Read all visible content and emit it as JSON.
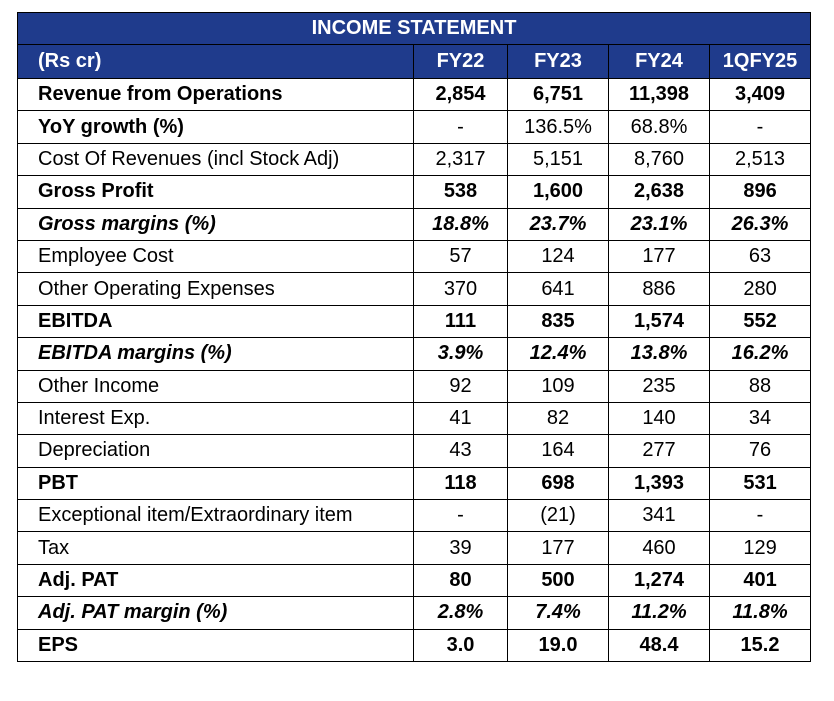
{
  "title": "INCOME STATEMENT",
  "header": {
    "label": "(Rs cr)",
    "cols": [
      "FY22",
      "FY23",
      "FY24",
      "1QFY25"
    ]
  },
  "rows": [
    {
      "label": "Revenue from Operations",
      "values": [
        "2,854",
        "6,751",
        "11,398",
        "3,409"
      ],
      "style": "bold"
    },
    {
      "label": "YoY growth (%)",
      "values": [
        "-",
        "136.5%",
        "68.8%",
        "-"
      ],
      "style": "boldlabel"
    },
    {
      "label": "Cost Of Revenues (incl Stock Adj)",
      "values": [
        "2,317",
        "5,151",
        "8,760",
        "2,513"
      ],
      "style": "normal"
    },
    {
      "label": "Gross Profit",
      "values": [
        "538",
        "1,600",
        "2,638",
        "896"
      ],
      "style": "bold"
    },
    {
      "label": "Gross margins (%)",
      "values": [
        "18.8%",
        "23.7%",
        "23.1%",
        "26.3%"
      ],
      "style": "bi"
    },
    {
      "label": "Employee Cost",
      "values": [
        "57",
        "124",
        "177",
        "63"
      ],
      "style": "normal"
    },
    {
      "label": "Other Operating Expenses",
      "values": [
        "370",
        "641",
        "886",
        "280"
      ],
      "style": "normal"
    },
    {
      "label": "EBITDA",
      "values": [
        "111",
        "835",
        "1,574",
        "552"
      ],
      "style": "bold"
    },
    {
      "label": "EBITDA margins (%)",
      "values": [
        "3.9%",
        "12.4%",
        "13.8%",
        "16.2%"
      ],
      "style": "bi"
    },
    {
      "label": "Other Income",
      "values": [
        "92",
        "109",
        "235",
        "88"
      ],
      "style": "normal"
    },
    {
      "label": "Interest Exp.",
      "values": [
        "41",
        "82",
        "140",
        "34"
      ],
      "style": "normal"
    },
    {
      "label": "Depreciation",
      "values": [
        "43",
        "164",
        "277",
        "76"
      ],
      "style": "normal"
    },
    {
      "label": "PBT",
      "values": [
        "118",
        "698",
        "1,393",
        "531"
      ],
      "style": "bold"
    },
    {
      "label": "Exceptional item/Extraordinary item",
      "values": [
        "-",
        "(21)",
        "341",
        "-"
      ],
      "style": "normal"
    },
    {
      "label": "Tax",
      "values": [
        "39",
        "177",
        "460",
        "129"
      ],
      "style": "normal"
    },
    {
      "label": "Adj. PAT",
      "values": [
        "80",
        "500",
        "1,274",
        "401"
      ],
      "style": "bold"
    },
    {
      "label": "Adj. PAT margin (%)",
      "values": [
        "2.8%",
        "7.4%",
        "11.2%",
        "11.8%"
      ],
      "style": "bi"
    },
    {
      "label": "EPS",
      "values": [
        "3.0",
        "19.0",
        "48.4",
        "15.2"
      ],
      "style": "bold"
    }
  ]
}
